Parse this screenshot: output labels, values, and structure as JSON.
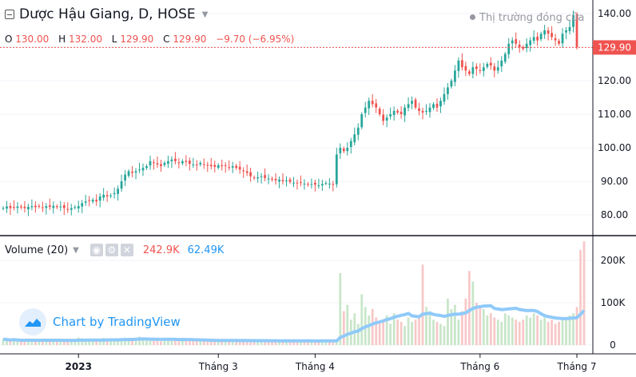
{
  "header": {
    "title": "Dược Hậu Giang, D, HOSE",
    "status": "Thị trường đóng cửa",
    "ohlc": {
      "o_label": "O",
      "o": "130.00",
      "h_label": "H",
      "h": "132.00",
      "l_label": "L",
      "l": "129.90",
      "c_label": "C",
      "c": "129.90",
      "change": "−9.70 (−6.95%)"
    }
  },
  "volume_header": {
    "label": "Volume (20)",
    "value": "242.9K",
    "ma_value": "62.49K"
  },
  "watermark": {
    "text": "Chart by TradingView"
  },
  "colors": {
    "up": "#26a69a",
    "down": "#ef5350",
    "up_vol": "#c8e6c9",
    "down_vol": "#f8c8c8",
    "ma": "#90caf9",
    "last_price": "#ef5350",
    "text": "#131722"
  },
  "chart_data": [
    {
      "type": "candlestick",
      "title": "Dược Hậu Giang, D, HOSE",
      "last_price": 129.9,
      "ylim": [
        75,
        141
      ],
      "y_ticks": [
        80,
        90,
        100,
        110,
        120,
        130,
        140
      ],
      "y_tick_labels": [
        "80.00",
        "90.00",
        "100.00",
        "110.00",
        "120.00",
        "130.00",
        "140.00"
      ],
      "x_tick_labels": [
        "2023",
        "Tháng 3",
        "Tháng 4",
        "Tháng 6",
        "Tháng 7"
      ],
      "x_tick_index": [
        21,
        60,
        87,
        133,
        160
      ],
      "note": "approximate daily closes read from the chart",
      "closes": [
        82,
        82.5,
        82,
        82.3,
        82.5,
        82.2,
        82,
        82.4,
        82.6,
        82.3,
        82.5,
        82.1,
        82.6,
        82.4,
        82.7,
        82.3,
        82.5,
        82,
        81.5,
        82,
        82.3,
        82.6,
        83.5,
        84,
        84.2,
        84.5,
        84,
        85.5,
        86,
        85.5,
        85.8,
        86.5,
        87.8,
        90,
        92,
        93,
        92.5,
        93,
        93.5,
        94,
        94.5,
        96,
        95.5,
        95,
        94.5,
        95.5,
        96,
        96.5,
        96,
        95.5,
        96,
        95.8,
        95.2,
        95,
        94.8,
        95.5,
        95,
        94.8,
        94.5,
        94.3,
        94.8,
        94.5,
        94.6,
        94.2,
        94.5,
        94,
        93.5,
        93,
        92.5,
        91.5,
        91,
        91.2,
        91.5,
        91,
        90.8,
        90.5,
        90.3,
        90.5,
        90,
        90.2,
        89.8,
        89.6,
        89.5,
        89.5,
        89.3,
        89,
        89.2,
        89,
        88.8,
        89.2,
        89.5,
        89.3,
        89,
        98,
        100,
        99,
        100,
        102,
        104,
        106,
        110,
        112,
        114,
        113,
        112,
        110,
        108,
        109,
        110,
        111,
        110.5,
        110,
        112,
        113,
        114,
        112,
        111,
        110.5,
        111,
        112,
        113,
        112,
        114,
        116,
        118,
        120,
        123,
        126,
        124,
        123,
        122,
        124,
        123.5,
        123,
        124,
        125,
        124.5,
        123,
        124,
        126,
        128,
        131,
        132,
        131,
        130,
        129.5,
        131,
        132,
        133,
        132,
        134,
        135,
        134,
        133,
        132,
        131,
        134,
        135,
        136,
        139.6,
        129.9
      ],
      "ma20": [
        82,
        82.2,
        82.2,
        82.2,
        82.3,
        82.2,
        82.2,
        82.3,
        82.3,
        82.3,
        82.3,
        82.3,
        82.3,
        82.3,
        82.4,
        82.4,
        82.4,
        82.4,
        82.3,
        82.3,
        82.3,
        82.3,
        82.4,
        82.5,
        82.6,
        82.7,
        82.8,
        83,
        83.2,
        83.3,
        83.5,
        83.7,
        84,
        84.4,
        84.9,
        85.4,
        85.9,
        86.4,
        86.9,
        87.5,
        88.1,
        88.8,
        89.4,
        90,
        90.5,
        91,
        91.6,
        92.1,
        92.6,
        93,
        93.4,
        93.8,
        94.1,
        94.4,
        94.6,
        94.8,
        95,
        95.1,
        95.1,
        95.1,
        95.1,
        95,
        94.9,
        94.8,
        94.7,
        94.6,
        94.4,
        94.2,
        93.9,
        93.6,
        93.3,
        93,
        92.7,
        92.5,
        92.2,
        92,
        91.7,
        91.4,
        91.1,
        90.9,
        90.6,
        90.4,
        90.2,
        90,
        89.9,
        89.8,
        89.7,
        89.6,
        89.5,
        89.5,
        89.5,
        89.5,
        89.4,
        89.9,
        90.4,
        90.9,
        91.4,
        92,
        92.7,
        93.6,
        94.6,
        95.7,
        96.9,
        98,
        99,
        100,
        101,
        102,
        103.1,
        104.1,
        105,
        105.8,
        106.6,
        107.4,
        108.1,
        108.8,
        109.4,
        110,
        110.4,
        110.8,
        111.2,
        111.5,
        111.7,
        112.1,
        112.6,
        113.2,
        113.8,
        114.7,
        115.8,
        116.6,
        117.2,
        117.7,
        118.4,
        118.9,
        119.3,
        119.8,
        120.4,
        120.9,
        121.4,
        121.9,
        122.4,
        123,
        123.7,
        124.5,
        125.2,
        125.9,
        126.4,
        126.9,
        127.3,
        127.8,
        128.3,
        128.7,
        129.2,
        129.7,
        130.3,
        130.8,
        131.2,
        131.4,
        131.6,
        131.9,
        132.2,
        132.5,
        132.9,
        132.6
      ]
    },
    {
      "type": "bar",
      "title": "Volume (20)",
      "ylim": [
        0,
        250000
      ],
      "y_ticks": [
        0,
        100000,
        200000
      ],
      "y_tick_labels": [
        "0",
        "100K",
        "200K"
      ],
      "last_volume": 242900,
      "volume_ma20_last": 62490,
      "volumes": [
        14,
        12,
        10,
        15,
        9,
        8,
        11,
        13,
        10,
        12,
        9,
        14,
        11,
        10,
        13,
        9,
        12,
        10,
        8,
        11,
        14,
        18,
        16,
        12,
        13,
        10,
        9,
        11,
        17,
        15,
        12,
        14,
        13,
        16,
        18,
        15,
        12,
        17,
        20,
        14,
        13,
        12,
        10,
        11,
        9,
        12,
        13,
        10,
        11,
        9,
        14,
        12,
        11,
        10,
        13,
        9,
        11,
        12,
        10,
        9,
        12,
        11,
        10,
        8,
        12,
        9,
        10,
        11,
        9,
        8,
        10,
        12,
        11,
        9,
        10,
        8,
        11,
        9,
        10,
        12,
        9,
        8,
        10,
        11,
        9,
        10,
        8,
        9,
        10,
        11,
        9,
        12,
        10,
        9,
        170,
        80,
        95,
        60,
        75,
        50,
        120,
        90,
        70,
        85,
        65,
        55,
        60,
        70,
        50,
        75,
        60,
        55,
        45,
        65,
        55,
        60,
        70,
        190,
        90,
        80,
        60,
        55,
        50,
        45,
        110,
        85,
        95,
        60,
        80,
        110,
        175,
        150,
        100,
        90,
        85,
        70,
        75,
        65,
        60,
        55,
        75,
        70,
        65,
        60,
        55,
        60,
        70,
        65,
        75,
        70,
        60,
        65,
        55,
        60,
        50,
        55,
        60,
        65,
        70,
        75,
        90,
        225,
        245
      ],
      "note": "volumes in thousands (K), approximate"
    }
  ]
}
